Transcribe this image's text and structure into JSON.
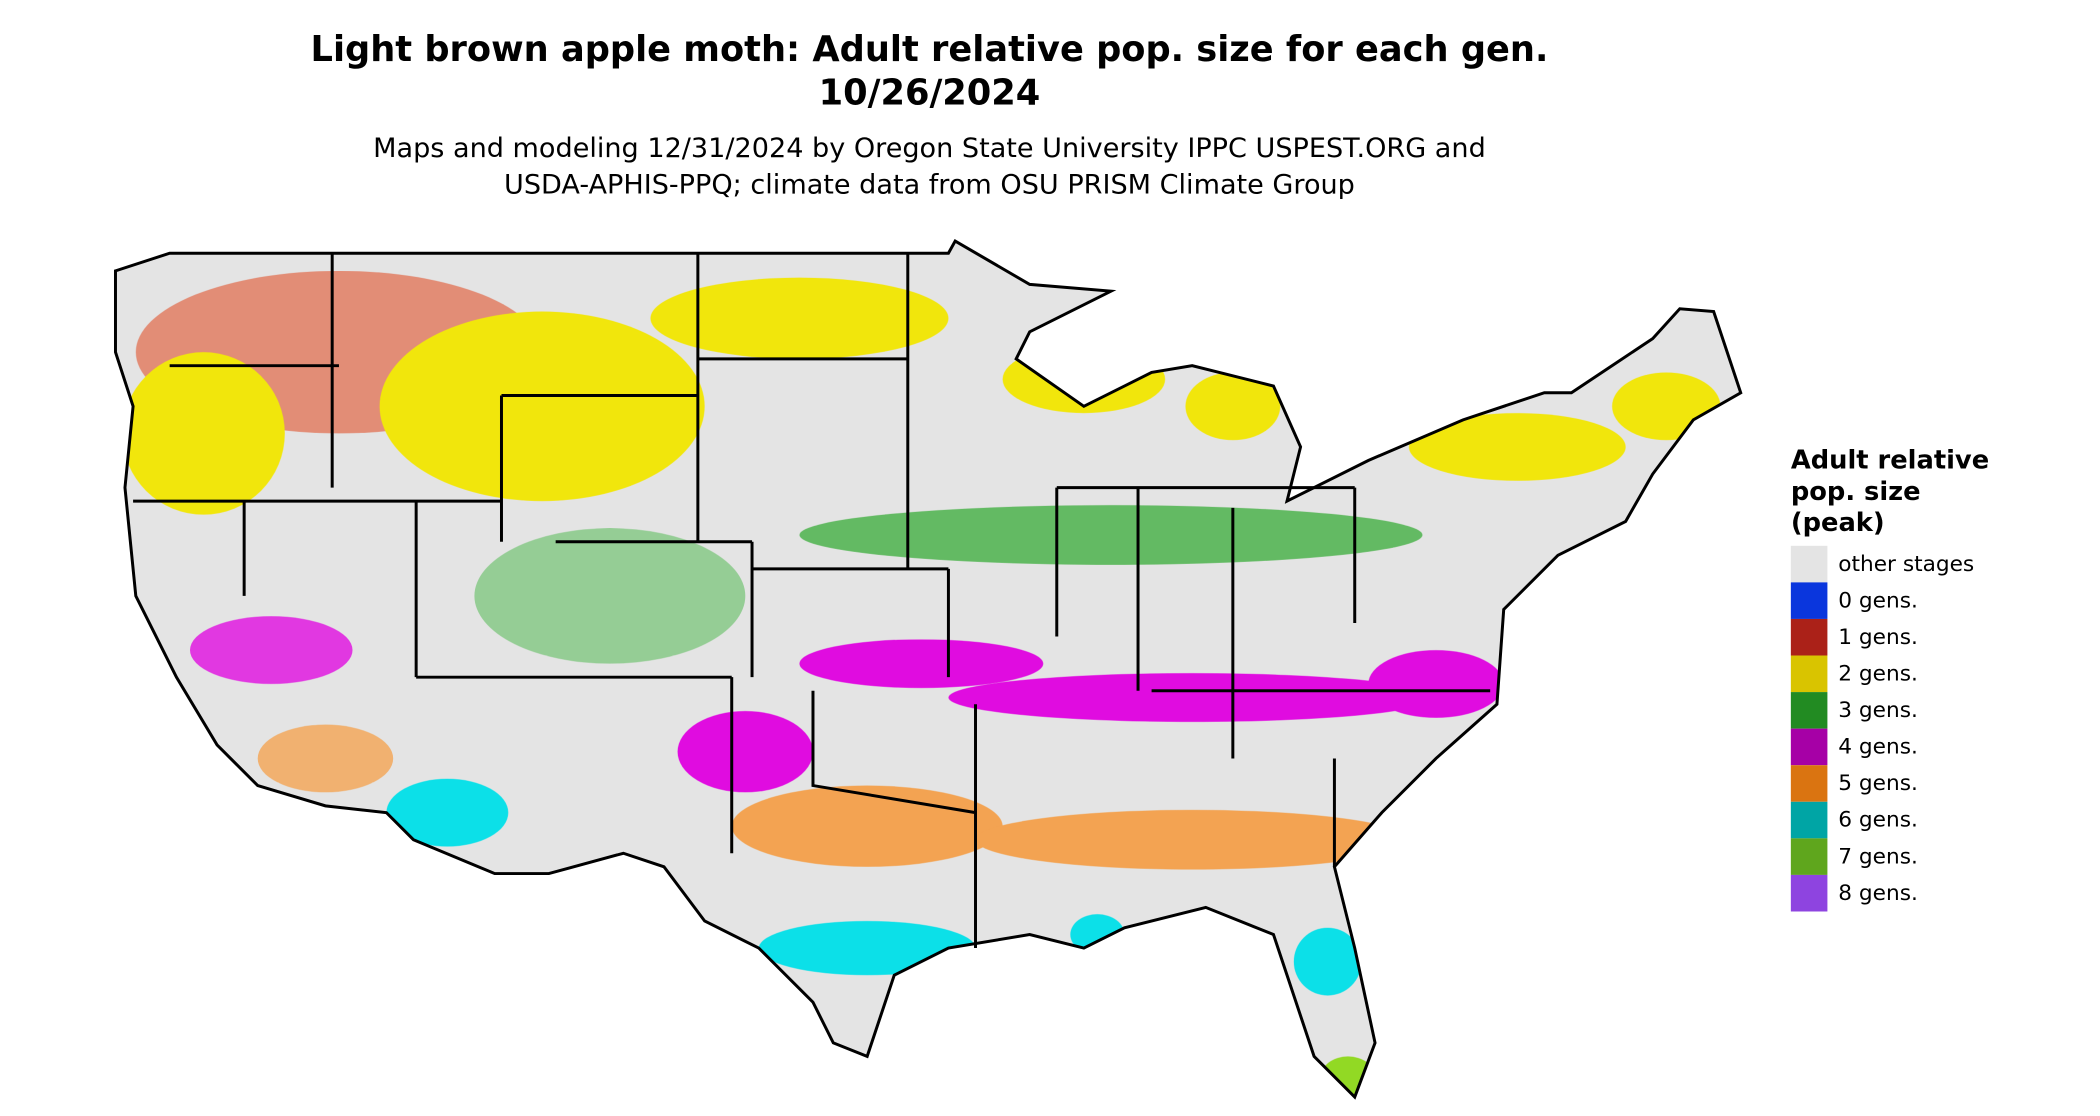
{
  "title": [
    "Light brown apple moth: Adult relative pop. size for each gen.",
    "10/26/2024"
  ],
  "subtitle": [
    "Maps and modeling 12/31/2024 by Oregon State University IPPC USPEST.ORG and",
    "USDA-APHIS-PPQ; climate data from OSU PRISM Climate Group"
  ],
  "legend": {
    "title": [
      "Adult relative",
      "pop. size",
      "(peak)"
    ],
    "items": [
      {
        "label": "other stages",
        "color": "#e4e4e4"
      },
      {
        "label": "0 gens.",
        "color": "#0a36dd"
      },
      {
        "label": "1 gens.",
        "color": "#ab2118"
      },
      {
        "label": "2 gens.",
        "color": "#d9c400"
      },
      {
        "label": "3 gens.",
        "color": "#228b22"
      },
      {
        "label": "4 gens.",
        "color": "#a600a6"
      },
      {
        "label": "5 gens.",
        "color": "#da7411"
      },
      {
        "label": "6 gens.",
        "color": "#00a5a5"
      },
      {
        "label": "7 gens.",
        "color": "#5fa61d"
      },
      {
        "label": "8 gens.",
        "color": "#8e44e0"
      }
    ]
  }
}
